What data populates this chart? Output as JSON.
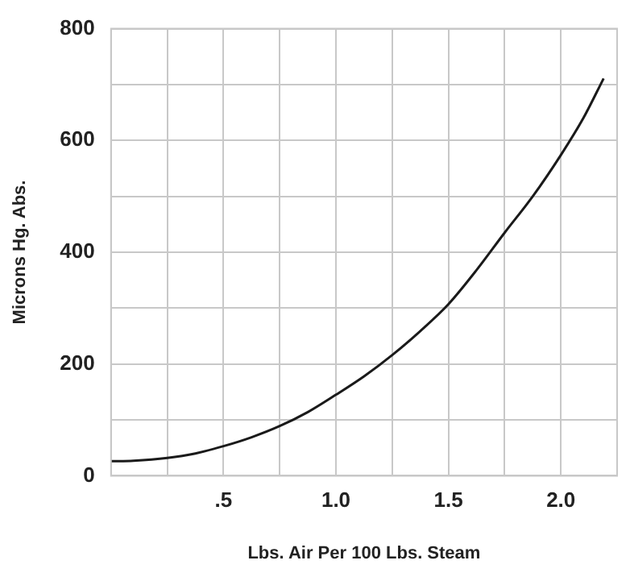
{
  "chart_data": {
    "type": "line",
    "xlabel": "Lbs. Air Per 100 Lbs. Steam",
    "ylabel": "Microns Hg. Abs.",
    "x": [
      0,
      0.1,
      0.25,
      0.375,
      0.5,
      0.625,
      0.75,
      0.875,
      1.0,
      1.125,
      1.25,
      1.375,
      1.5,
      1.625,
      1.75,
      1.875,
      2.0,
      2.1,
      2.19
    ],
    "series": [
      {
        "color": "#1a1a1a",
        "values": [
          26,
          27,
          32,
          40,
          53,
          69,
          89,
          114,
          145,
          178,
          216,
          259,
          307,
          368,
          435,
          500,
          574,
          640,
          711
        ]
      }
    ],
    "xlim": [
      0,
      2.25
    ],
    "xticks": [
      {
        "value": 0,
        "label": null
      },
      {
        "value": 0.25,
        "label": null
      },
      {
        "value": 0.5,
        "label": ".5"
      },
      {
        "value": 0.75,
        "label": null
      },
      {
        "value": 1,
        "label": "1.0"
      },
      {
        "value": 1.25,
        "label": null
      },
      {
        "value": 1.5,
        "label": "1.5"
      },
      {
        "value": 1.75,
        "label": null
      },
      {
        "value": 2,
        "label": "2.0"
      },
      {
        "value": 2.25,
        "label": null
      }
    ],
    "ylim": [
      0,
      800
    ],
    "yticks": [
      0,
      {
        "value": 100,
        "label": null
      },
      200,
      {
        "value": 300,
        "label": null
      },
      400,
      {
        "value": 500,
        "label": null
      },
      600,
      {
        "value": 700,
        "label": null
      },
      800
    ],
    "grid": true,
    "marker": "none",
    "line_style": "solid",
    "legend": false
  }
}
